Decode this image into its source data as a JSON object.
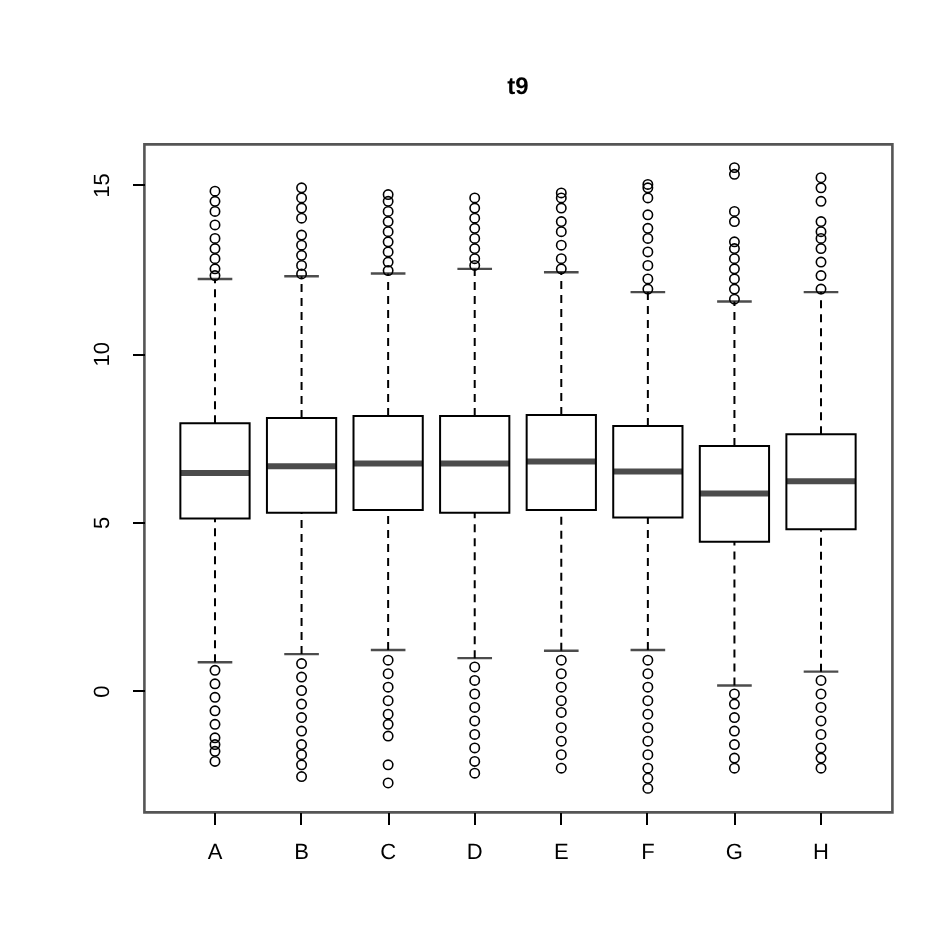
{
  "chart_data": {
    "type": "box",
    "title": "t9",
    "categories": [
      "A",
      "B",
      "C",
      "D",
      "E",
      "F",
      "G",
      "H"
    ],
    "ylim": [
      -3.6,
      16.2
    ],
    "yticks": [
      0,
      5,
      10,
      15
    ],
    "boxes": [
      {
        "low": 0.84,
        "q1": 5.1,
        "median": 6.45,
        "q3": 7.92,
        "high": 12.2,
        "outliers": [
          12.3,
          12.5,
          12.8,
          13.1,
          13.4,
          13.8,
          14.2,
          14.5,
          14.8,
          0.6,
          0.2,
          -0.2,
          -0.6,
          -1.0,
          -1.4,
          -1.6,
          -1.8,
          -2.1
        ]
      },
      {
        "low": 1.08,
        "q1": 5.27,
        "median": 6.65,
        "q3": 8.08,
        "high": 12.28,
        "outliers": [
          12.35,
          12.6,
          12.9,
          13.2,
          13.5,
          14.0,
          14.3,
          14.6,
          14.9,
          0.8,
          0.4,
          0,
          -0.4,
          -0.8,
          -1.2,
          -1.6,
          -1.9,
          -2.2,
          -2.55
        ]
      },
      {
        "low": 1.2,
        "q1": 5.35,
        "median": 6.73,
        "q3": 8.14,
        "high": 12.36,
        "outliers": [
          12.45,
          12.7,
          13.0,
          13.3,
          13.6,
          13.9,
          14.2,
          14.5,
          14.7,
          0.9,
          0.5,
          0.1,
          -0.3,
          -0.7,
          -1.0,
          -1.35,
          -2.2,
          -2.74
        ]
      },
      {
        "low": 0.96,
        "q1": 5.27,
        "median": 6.73,
        "q3": 8.14,
        "high": 12.5,
        "outliers": [
          12.6,
          12.8,
          13.1,
          13.4,
          13.7,
          14.0,
          14.3,
          14.6,
          0.7,
          0.3,
          -0.1,
          -0.5,
          -0.9,
          -1.3,
          -1.7,
          -2.1,
          -2.45
        ]
      },
      {
        "low": 1.18,
        "q1": 5.35,
        "median": 6.79,
        "q3": 8.17,
        "high": 12.4,
        "outliers": [
          12.5,
          12.8,
          13.2,
          13.6,
          13.9,
          14.3,
          14.6,
          14.75,
          0.9,
          0.5,
          0.1,
          -0.3,
          -0.65,
          -1.1,
          -1.5,
          -1.9,
          -2.3
        ]
      },
      {
        "low": 1.2,
        "q1": 5.13,
        "median": 6.49,
        "q3": 7.84,
        "high": 11.81,
        "outliers": [
          11.9,
          12.2,
          12.6,
          13.0,
          13.4,
          13.7,
          14.1,
          14.6,
          14.9,
          15.0,
          0.9,
          0.5,
          0.1,
          -0.3,
          -0.7,
          -1.1,
          -1.5,
          -1.9,
          -2.3,
          -2.6,
          -2.9
        ]
      },
      {
        "low": 0.15,
        "q1": 4.41,
        "median": 5.84,
        "q3": 7.25,
        "high": 11.53,
        "outliers": [
          11.6,
          11.9,
          12.2,
          12.5,
          12.8,
          13.1,
          13.3,
          13.9,
          14.2,
          15.3,
          15.5,
          -0.1,
          -0.4,
          -0.8,
          -1.2,
          -1.6,
          -2.0,
          -2.3
        ]
      },
      {
        "low": 0.56,
        "q1": 4.78,
        "median": 6.2,
        "q3": 7.6,
        "high": 11.81,
        "outliers": [
          11.9,
          12.3,
          12.7,
          13.1,
          13.4,
          13.6,
          13.9,
          14.5,
          14.9,
          15.2,
          0.3,
          -0.1,
          -0.5,
          -0.9,
          -1.3,
          -1.7,
          -2.0,
          -2.3
        ]
      }
    ]
  }
}
